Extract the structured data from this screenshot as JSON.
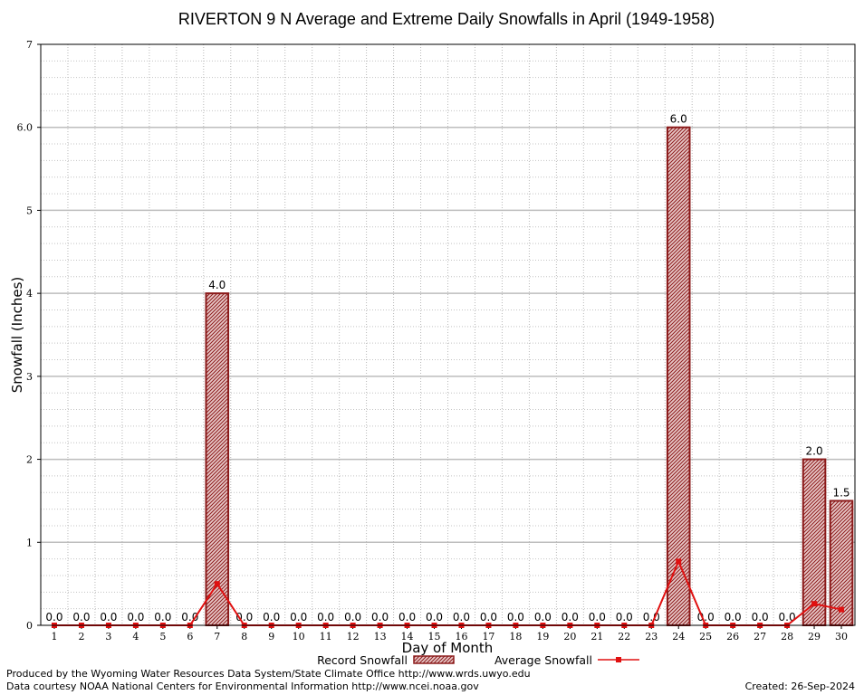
{
  "chart_data": {
    "type": "bar",
    "title": "RIVERTON 9 N Average and Extreme Daily Snowfalls in April (1949-1958)",
    "xlabel": "Day of Month",
    "ylabel": "Snowfall (Inches)",
    "ylim": [
      0,
      7
    ],
    "yticks": [
      "0",
      "1",
      "2",
      "3",
      "4",
      "5",
      "6.0",
      "7"
    ],
    "categories": [
      "1",
      "2",
      "3",
      "4",
      "5",
      "6",
      "7",
      "8",
      "9",
      "10",
      "11",
      "12",
      "13",
      "14",
      "15",
      "16",
      "17",
      "18",
      "19",
      "20",
      "21",
      "22",
      "23",
      "24",
      "25",
      "26",
      "27",
      "28",
      "29",
      "30"
    ],
    "grid": true,
    "legend_placement": "bottom",
    "series": [
      {
        "name": "Record Snowfall",
        "kind": "bar",
        "color": "#a01818",
        "values": [
          0,
          0,
          0,
          0,
          0,
          0,
          4.0,
          0,
          0,
          0,
          0,
          0,
          0,
          0,
          0,
          0,
          0,
          0,
          0,
          0,
          0,
          0,
          0,
          6.0,
          0,
          0,
          0,
          0,
          2.0,
          1.5
        ],
        "labels": [
          "0.0",
          "0.0",
          "0.0",
          "0.0",
          "0.0",
          "0.0",
          "4.0",
          "0.0",
          "0.0",
          "0.0",
          "0.0",
          "0.0",
          "0.0",
          "0.0",
          "0.0",
          "0.0",
          "0.0",
          "0.0",
          "0.0",
          "0.0",
          "0.0",
          "0.0",
          "0.0",
          "6.0",
          "0.0",
          "0.0",
          "0.0",
          "0.0",
          "2.0",
          "1.5"
        ]
      },
      {
        "name": "Average Snowfall",
        "kind": "line",
        "color": "#e01010",
        "values": [
          0,
          0,
          0,
          0,
          0,
          0,
          0.5,
          0,
          0,
          0,
          0,
          0,
          0,
          0,
          0,
          0,
          0,
          0,
          0,
          0,
          0,
          0,
          0,
          0.77,
          0,
          0,
          0,
          0,
          0.26,
          0.19
        ]
      }
    ]
  },
  "footer": {
    "credit_line1": "Produced by the Wyoming Water Resources Data System/State Climate Office http://www.wrds.uwyo.edu",
    "credit_line2": "Data courtesy NOAA National Centers for Environmental Information http://www.ncei.noaa.gov",
    "created": "Created: 26-Sep-2024"
  }
}
